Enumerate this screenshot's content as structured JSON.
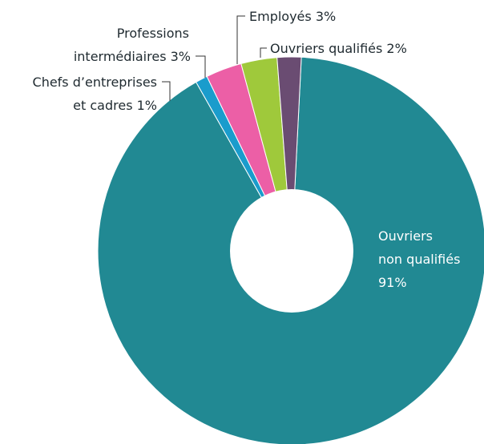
{
  "chart_data": {
    "type": "pie",
    "title": "",
    "series": [
      {
        "values": [
          {
            "label": "Ouvriers non qualifiés",
            "value": 91,
            "color": "#218993"
          },
          {
            "label": "Chefs d'entreprises et cadres",
            "value": 1,
            "color": "#1a9ccc"
          },
          {
            "label": "Professions intermédiaires",
            "value": 3,
            "color": "#ec5fa6"
          },
          {
            "label": "Employés",
            "value": 3,
            "color": "#9fc93b"
          },
          {
            "label": "Ouvriers qualifiés",
            "value": 2,
            "color": "#6a4c72"
          }
        ]
      }
    ],
    "labels": {
      "inside": {
        "line1": "Ouvriers",
        "line2": "non qualifiés",
        "line3": "91%"
      },
      "chefs": {
        "line1": "Chefs d’entreprises",
        "line2": "et cadres 1%"
      },
      "professions": {
        "line1": "Professions",
        "line2": "intermédiaires 3%"
      },
      "employes": {
        "line1": "Employés 3%"
      },
      "ouvriers_qualifies": {
        "line1": "Ouvriers qualifiés 2%"
      }
    },
    "donut": true,
    "legend": "none"
  }
}
